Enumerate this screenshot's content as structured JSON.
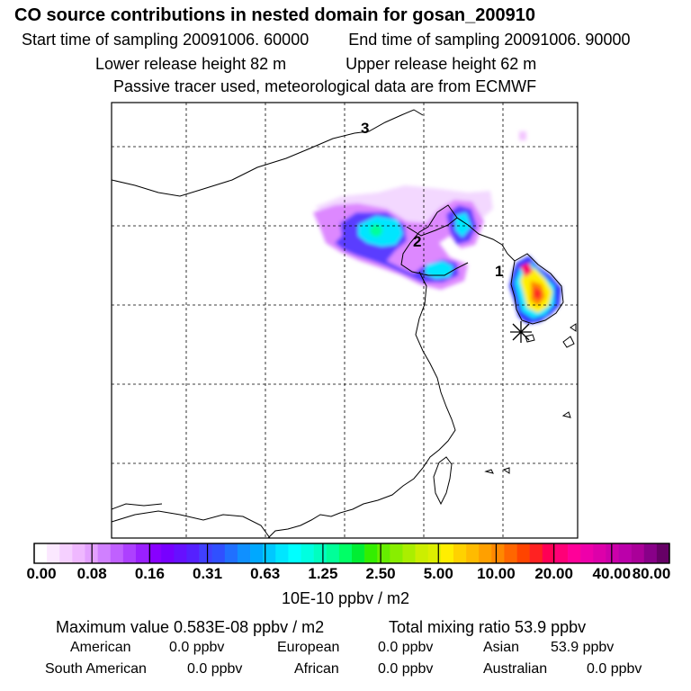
{
  "header": {
    "title": "CO  source contributions in nested domain for gosan_200910",
    "start_label": "Start time of sampling 20091006. 60000",
    "end_label": "End time of sampling 20091006. 90000",
    "lower_label": "Lower release height   82 m",
    "upper_label": "Upper release height   62 m",
    "tracer_note": "Passive tracer used, meteorological data are from ECMWF"
  },
  "map": {
    "region_labels": [
      "1",
      "2",
      "3"
    ],
    "colors": {
      "coastline": "#000000",
      "grid": "#000000",
      "low": "#dd88ff",
      "mid": "#3333ff",
      "cyan": "#00e6ff",
      "hot": "#ff0066"
    }
  },
  "colorbar": {
    "labels": [
      "0.00",
      "0.08",
      "0.16",
      "0.31",
      "0.63",
      "1.25",
      "2.50",
      "5.00",
      "10.00",
      "20.00",
      "40.00",
      "80.00"
    ],
    "units": "10E-10 ppbv / m2",
    "colors": [
      "#ffffff",
      "#fbe8ff",
      "#f5d0ff",
      "#efb8ff",
      "#e3a0ff",
      "#d080ff",
      "#c060ff",
      "#ad40ff",
      "#9a20ff",
      "#8800ff",
      "#7700ff",
      "#6610ff",
      "#5520ff",
      "#4040ff",
      "#3050ff",
      "#2070ff",
      "#1090ff",
      "#00a8ff",
      "#00c8ff",
      "#00e6ff",
      "#00ffff",
      "#00ffe0",
      "#00ffc0",
      "#00ff99",
      "#00ff66",
      "#00ee33",
      "#33ee00",
      "#66ee00",
      "#88ee00",
      "#aaee00",
      "#ccee00",
      "#ddee00",
      "#ffee00",
      "#ffd200",
      "#ffbb00",
      "#ffa000",
      "#ff8800",
      "#ff6600",
      "#ff4400",
      "#ff2222",
      "#ff0055",
      "#ff0077",
      "#ff0099",
      "#ee00aa",
      "#dd00aa",
      "#cc00aa",
      "#bb00aa",
      "#aa0099",
      "#880088",
      "#660066"
    ]
  },
  "stats": {
    "max_label": "Maximum value  0.583E-08 ppbv / m2",
    "total_label": "Total mixing ratio       53.9 ppbv",
    "rows": [
      [
        {
          "name": "American",
          "value": "0.0 ppbv"
        },
        {
          "name": "European",
          "value": "0.0 ppbv"
        },
        {
          "name": "Asian",
          "value": "53.9 ppbv"
        }
      ],
      [
        {
          "name": "South American",
          "value": "0.0 ppbv"
        },
        {
          "name": "African",
          "value": "0.0 ppbv"
        },
        {
          "name": "Australian",
          "value": "0.0 ppbv"
        }
      ]
    ]
  }
}
